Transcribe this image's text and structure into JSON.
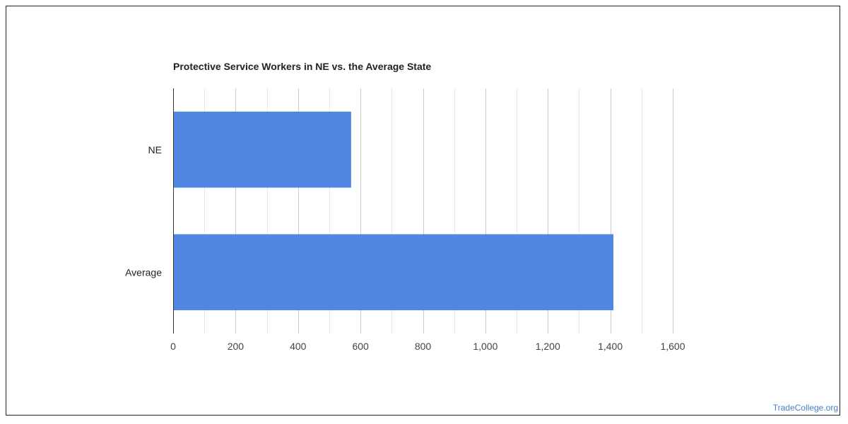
{
  "chart_data": {
    "type": "bar",
    "orientation": "horizontal",
    "title": "Protective Service Workers in NE vs. the Average State",
    "categories": [
      "NE",
      "Average"
    ],
    "values": [
      570,
      1410
    ],
    "xlim": [
      0,
      1600
    ],
    "xticks": [
      0,
      200,
      400,
      600,
      800,
      1000,
      1200,
      1400,
      1600
    ],
    "xtick_labels": [
      "0",
      "200",
      "400",
      "600",
      "800",
      "1,000",
      "1,200",
      "1,400",
      "1,600"
    ],
    "minor_grid_step": 100,
    "grid": true,
    "bar_color": "#5286e3",
    "grid_color": "#cccccc"
  },
  "footer": {
    "watermark": "TradeCollege.org"
  }
}
